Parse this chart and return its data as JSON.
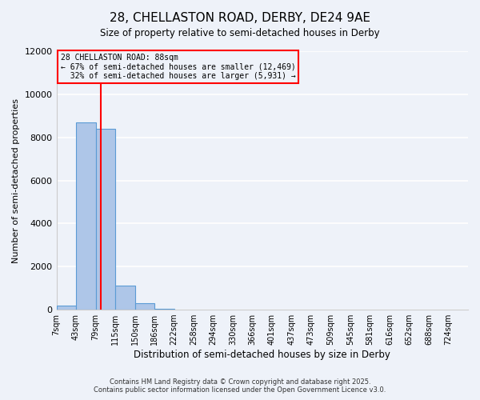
{
  "title": "28, CHELLASTON ROAD, DERBY, DE24 9AE",
  "subtitle": "Size of property relative to semi-detached houses in Derby",
  "xlabel": "Distribution of semi-detached houses by size in Derby",
  "ylabel": "Number of semi-detached properties",
  "bin_labels": [
    "7sqm",
    "43sqm",
    "79sqm",
    "115sqm",
    "150sqm",
    "186sqm",
    "222sqm",
    "258sqm",
    "294sqm",
    "330sqm",
    "366sqm",
    "401sqm",
    "437sqm",
    "473sqm",
    "509sqm",
    "545sqm",
    "581sqm",
    "616sqm",
    "652sqm",
    "688sqm",
    "724sqm"
  ],
  "bin_values": [
    200,
    8700,
    8400,
    1100,
    300,
    30,
    0,
    0,
    0,
    0,
    0,
    0,
    0,
    0,
    0,
    0,
    0,
    0,
    0,
    0,
    0
  ],
  "bar_color": "#aec6e8",
  "bar_edgecolor": "#5b9bd5",
  "property_line_label": "28 CHELLASTON ROAD: 88sqm",
  "pct_smaller": 67,
  "pct_smaller_count": 12469,
  "pct_larger": 32,
  "pct_larger_count": 5931,
  "annotation_box_edgecolor": "red",
  "line_color": "red",
  "ylim": [
    0,
    12000
  ],
  "yticks": [
    0,
    2000,
    4000,
    6000,
    8000,
    10000,
    12000
  ],
  "footer1": "Contains HM Land Registry data © Crown copyright and database right 2025.",
  "footer2": "Contains public sector information licensed under the Open Government Licence v3.0.",
  "bg_color": "#eef2f9",
  "grid_color": "white",
  "bin_edges": [
    7,
    43,
    79,
    115,
    150,
    186,
    222,
    258,
    294,
    330,
    366,
    401,
    437,
    473,
    509,
    545,
    581,
    616,
    652,
    688,
    724
  ],
  "property_sqm": 88
}
